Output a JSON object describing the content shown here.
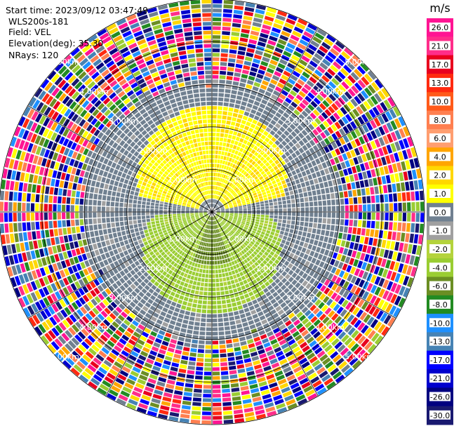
{
  "header": {
    "start_time": "Start time: 2023/09/12 03:47:49",
    "instrument": "WLS200s-181",
    "field": "Field: VEL",
    "elevation": "Elevation(deg): 35.30",
    "nrays": "NRays: 120"
  },
  "chart_data": {
    "type": "heatmap",
    "projection": "polar-ppi",
    "nrays": 120,
    "max_range_km": 5.0,
    "range_rings_km": [
      1.0,
      2.0,
      3.0,
      4.0,
      5.0
    ],
    "ring_labels": [
      "1.00km",
      "2.00km",
      "3.00km",
      "4.00km",
      "5.00km"
    ],
    "spokes_deg": [
      0,
      30,
      60,
      90,
      120,
      150,
      180,
      210,
      240,
      270,
      300,
      330
    ],
    "colorbar": {
      "unit": "m/s",
      "ticks": [
        "26.0",
        "21.0",
        "17.0",
        "13.0",
        "10.0",
        "8.0",
        "6.0",
        "4.0",
        "2.0",
        "1.0",
        "0.0",
        "-1.0",
        "-2.0",
        "-4.0",
        "-6.0",
        "-8.0",
        "-10.0",
        "-13.0",
        "-17.0",
        "-21.0",
        "-26.0",
        "-30.0"
      ],
      "colors": [
        "#ff1493",
        "#ff2d8a",
        "#e8001f",
        "#ff2a10",
        "#ff5a1a",
        "#ff7f50",
        "#ff9e70",
        "#ffa500",
        "#ffd700",
        "#ffff00",
        "#708090",
        "#a0a0a0",
        "#b4d33c",
        "#9acd32",
        "#6b8e23",
        "#228b22",
        "#1e90ff",
        "#4682b4",
        "#0000ff",
        "#0000cd",
        "#000080",
        "#191970"
      ]
    },
    "zones": {
      "positive_north_km": [
        0.3,
        2.5
      ],
      "negative_south_km": [
        0.0,
        2.4
      ],
      "gray_clear_km": [
        0.0,
        3.1
      ],
      "noise_km": [
        3.1,
        5.0
      ]
    }
  }
}
